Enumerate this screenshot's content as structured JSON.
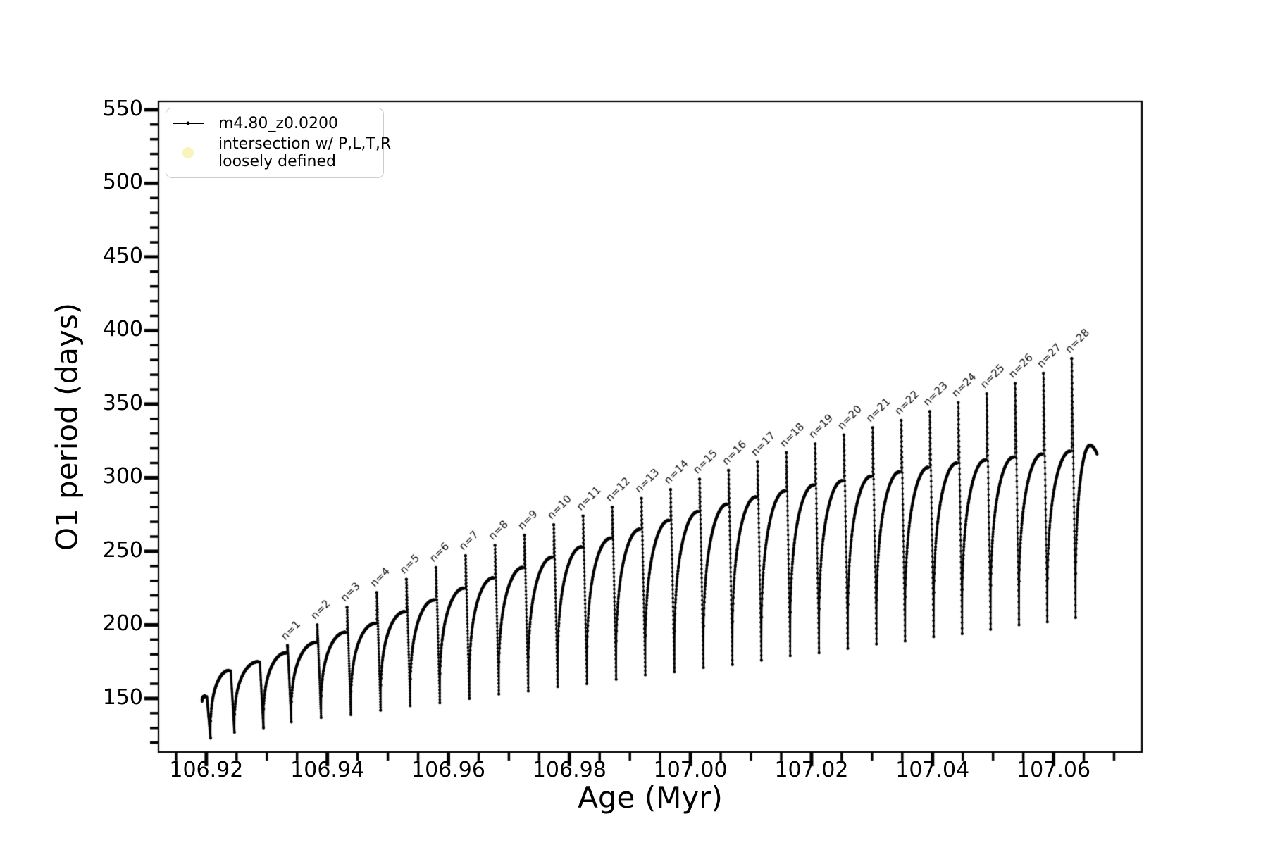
{
  "legend": {
    "items": [
      {
        "label": "m4.80_z0.0200"
      },
      {
        "label_line1": "intersection w/ P,L,T,R",
        "label_line2": "loosely defined",
        "marker_color": "#f8f4bb"
      }
    ]
  },
  "chart_data": {
    "type": "line",
    "title": "",
    "xlabel": "Age (Myr)",
    "ylabel": "O1 period (days)",
    "xlim": [
      106.9121,
      107.0746
    ],
    "ylim": [
      113.6,
      555.7
    ],
    "grid": false,
    "legend_position": "upper left",
    "series_color": "#000000",
    "x_axis": {
      "tick_values": [
        106.92,
        106.94,
        106.96,
        106.98,
        107.0,
        107.02,
        107.04,
        107.06
      ],
      "tick_labels": [
        "106.92",
        "106.94",
        "106.96",
        "106.98",
        "107.00",
        "107.02",
        "107.04",
        "107.06"
      ],
      "minor_step": 0.005
    },
    "y_axis": {
      "tick_values": [
        150,
        200,
        250,
        300,
        350,
        400,
        450,
        500,
        550
      ],
      "tick_labels": [
        "150",
        "200",
        "250",
        "300",
        "350",
        "400",
        "450",
        "500",
        "550"
      ],
      "minor_step": 10
    },
    "start_point": {
      "age": 106.9193,
      "value": 148
    },
    "cycles": [
      {
        "arc_max": 151.5,
        "drop_age": 106.92005,
        "spike_top": null,
        "label": null,
        "min_after": 123
      },
      {
        "arc_max": 169,
        "drop_age": 106.924,
        "spike_top": null,
        "label": null,
        "min_after": 127
      },
      {
        "arc_max": 175,
        "drop_age": 106.9288,
        "spike_top": null,
        "label": null,
        "min_after": 130
      },
      {
        "arc_max": 181,
        "drop_age": 106.9334,
        "spike_top": 186,
        "label": "n=1",
        "min_after": 134
      },
      {
        "arc_max": 188,
        "drop_age": 106.93832,
        "spike_top": 200,
        "label": "n=2",
        "min_after": 137
      },
      {
        "arc_max": 195,
        "drop_age": 106.94324,
        "spike_top": 212,
        "label": "n=3",
        "min_after": 139
      },
      {
        "arc_max": 201,
        "drop_age": 106.94815,
        "spike_top": 222,
        "label": "n=4",
        "min_after": 142
      },
      {
        "arc_max": 209,
        "drop_age": 106.95305,
        "spike_top": 231,
        "label": "n=5",
        "min_after": 145
      },
      {
        "arc_max": 217,
        "drop_age": 106.95794,
        "spike_top": 239,
        "label": "n=6",
        "min_after": 147
      },
      {
        "arc_max": 225,
        "drop_age": 106.96282,
        "spike_top": 247,
        "label": "n=7",
        "min_after": 150
      },
      {
        "arc_max": 232,
        "drop_age": 106.96769,
        "spike_top": 254,
        "label": "n=8",
        "min_after": 153
      },
      {
        "arc_max": 239,
        "drop_age": 106.97255,
        "spike_top": 261,
        "label": "n=9",
        "min_after": 155
      },
      {
        "arc_max": 246,
        "drop_age": 106.9774,
        "spike_top": 268,
        "label": "n=10",
        "min_after": 158
      },
      {
        "arc_max": 253,
        "drop_age": 106.98224,
        "spike_top": 274,
        "label": "n=11",
        "min_after": 160
      },
      {
        "arc_max": 259,
        "drop_age": 106.98707,
        "spike_top": 280,
        "label": "n=12",
        "min_after": 163
      },
      {
        "arc_max": 265,
        "drop_age": 106.99189,
        "spike_top": 286,
        "label": "n=13",
        "min_after": 166
      },
      {
        "arc_max": 271,
        "drop_age": 106.9967,
        "spike_top": 292,
        "label": "n=14",
        "min_after": 168
      },
      {
        "arc_max": 277,
        "drop_age": 107.0015,
        "spike_top": 299,
        "label": "n=15",
        "min_after": 171
      },
      {
        "arc_max": 282,
        "drop_age": 107.00629,
        "spike_top": 305,
        "label": "n=16",
        "min_after": 173
      },
      {
        "arc_max": 287,
        "drop_age": 107.01107,
        "spike_top": 311,
        "label": "n=17",
        "min_after": 176
      },
      {
        "arc_max": 291,
        "drop_age": 107.01584,
        "spike_top": 317,
        "label": "n=18",
        "min_after": 179
      },
      {
        "arc_max": 295,
        "drop_age": 107.0206,
        "spike_top": 323,
        "label": "n=19",
        "min_after": 181
      },
      {
        "arc_max": 298,
        "drop_age": 107.02535,
        "spike_top": 329,
        "label": "n=20",
        "min_after": 184
      },
      {
        "arc_max": 301,
        "drop_age": 107.03009,
        "spike_top": 334,
        "label": "n=21",
        "min_after": 187
      },
      {
        "arc_max": 304,
        "drop_age": 107.03482,
        "spike_top": 339,
        "label": "n=22",
        "min_after": 189
      },
      {
        "arc_max": 307,
        "drop_age": 107.03954,
        "spike_top": 345,
        "label": "n=23",
        "min_after": 192
      },
      {
        "arc_max": 310,
        "drop_age": 107.04425,
        "spike_top": 351,
        "label": "n=24",
        "min_after": 194
      },
      {
        "arc_max": 312,
        "drop_age": 107.04895,
        "spike_top": 357,
        "label": "n=25",
        "min_after": 197
      },
      {
        "arc_max": 314,
        "drop_age": 107.05364,
        "spike_top": 364,
        "label": "n=26",
        "min_after": 200
      },
      {
        "arc_max": 316,
        "drop_age": 107.05832,
        "spike_top": 371,
        "label": "n=27",
        "min_after": 202
      },
      {
        "arc_max": 318,
        "drop_age": 107.06299,
        "spike_top": 381,
        "label": "n=28",
        "min_after": 205
      }
    ],
    "final_arc": {
      "peak_age": 107.066,
      "peak_value": 322,
      "end_age": 107.0672,
      "end_value": 316
    }
  }
}
